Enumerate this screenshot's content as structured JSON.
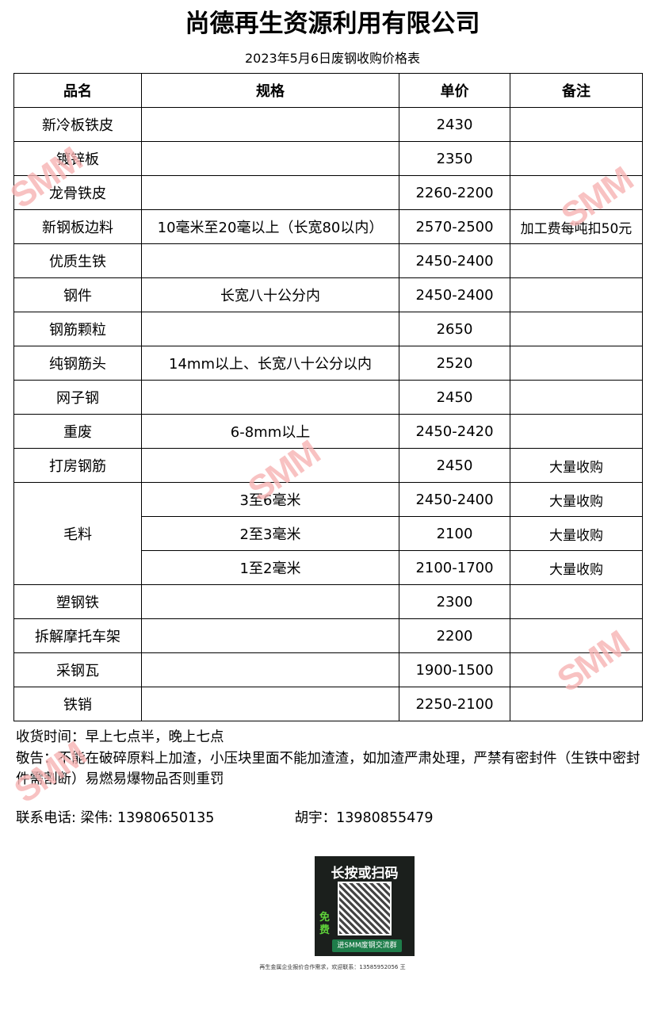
{
  "title": "尚德再生资源利用有限公司",
  "subtitle": "2023年5月6日废钢收购价格表",
  "headers": [
    "品名",
    "规格",
    "单价",
    "备注"
  ],
  "rows": [
    {
      "name": "新冷板铁皮",
      "spec": "",
      "price": "2430",
      "note": ""
    },
    {
      "name": "镀锌板",
      "spec": "",
      "price": "2350",
      "note": ""
    },
    {
      "name": "龙骨铁皮",
      "spec": "",
      "price": "2260-2200",
      "note": ""
    },
    {
      "name": "新钢板边料",
      "spec": "10毫米至20毫以上（长宽80以内）",
      "price": "2570-2500",
      "note": "加工费每吨扣50元"
    },
    {
      "name": "优质生铁",
      "spec": "",
      "price": "2450-2400",
      "note": ""
    },
    {
      "name": "钢件",
      "spec": "长宽八十公分内",
      "price": "2450-2400",
      "note": ""
    },
    {
      "name": "钢筋颗粒",
      "spec": "",
      "price": "2650",
      "note": ""
    },
    {
      "name": "纯钢筋头",
      "spec": "14mm以上、长宽八十公分以内",
      "price": "2520",
      "note": ""
    },
    {
      "name": "网子钢",
      "spec": "",
      "price": "2450",
      "note": ""
    },
    {
      "name": "重废",
      "spec": "6-8mm以上",
      "price": "2450-2420",
      "note": ""
    },
    {
      "name": "打房钢筋",
      "spec": "",
      "price": "2450",
      "note": "大量收购"
    }
  ],
  "maoliao": {
    "name": "毛料",
    "items": [
      {
        "spec": "3至6毫米",
        "price": "2450-2400",
        "note": "大量收购"
      },
      {
        "spec": "2至3毫米",
        "price": "2100",
        "note": "大量收购"
      },
      {
        "spec": "1至2毫米",
        "price": "2100-1700",
        "note": "大量收购"
      }
    ]
  },
  "rows2": [
    {
      "name": "塑钢铁",
      "spec": "",
      "price": "2300",
      "note": ""
    },
    {
      "name": "拆解摩托车架",
      "spec": "",
      "price": "2200",
      "note": ""
    },
    {
      "name": "采钢瓦",
      "spec": "",
      "price": "1900-1500",
      "note": ""
    },
    {
      "name": "铁销",
      "spec": "",
      "price": "2250-2100",
      "note": ""
    }
  ],
  "hours": "收货时间：早上七点半，晚上七点",
  "warning": "敬告：不能在破碎原料上加渣，小压块里面不能加渣渣，如加渣严肃处理，严禁有密封件（生铁中密封件需割断）易燃易爆物品否则重罚",
  "contact": {
    "label": "联系电话:",
    "person1": "梁伟: 13980650135",
    "person2": "胡宇：13980855479"
  },
  "qr": {
    "heading": "长按或扫码",
    "free": "免费",
    "button": "进SMM废钢交流群"
  },
  "footer": "再生金属企业报价合作需求，欢迎联系：13585952056 王",
  "watermark": "SMM",
  "colors": {
    "watermark": "#f7b4b4"
  }
}
